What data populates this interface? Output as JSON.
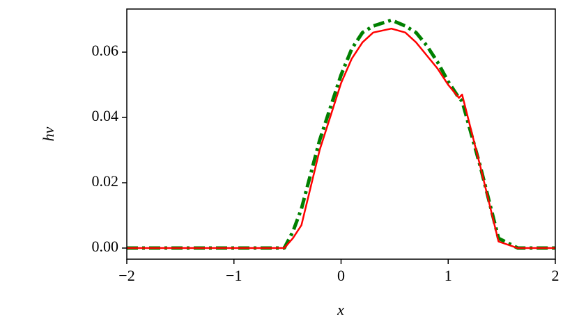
{
  "chart_data": {
    "type": "line",
    "x_label": "x",
    "y_label": "hv",
    "x": [
      -2,
      -0.53,
      -0.45,
      -0.37,
      -0.2,
      0,
      0.1,
      0.2,
      0.3,
      0.47,
      0.6,
      0.7,
      0.8,
      0.9,
      1.0,
      1.1,
      1.13,
      1.3,
      1.47,
      1.65,
      2
    ],
    "series": [
      {
        "color": "#008000",
        "style": "dashdot",
        "values": [
          0,
          0,
          0.005,
          0.012,
          0.033,
          0.053,
          0.061,
          0.066,
          0.068,
          0.0698,
          0.068,
          0.066,
          0.062,
          0.057,
          0.051,
          0.046,
          0.045,
          0.025,
          0.003,
          0,
          0
        ]
      },
      {
        "color": "#ff0000",
        "style": "solid",
        "values": [
          0,
          0,
          0.003,
          0.007,
          0.03,
          0.0505,
          0.058,
          0.063,
          0.066,
          0.0672,
          0.066,
          0.063,
          0.059,
          0.055,
          0.05,
          0.046,
          0.047,
          0.025,
          0.002,
          0,
          0
        ]
      }
    ],
    "xlim": [
      -2,
      2
    ],
    "xticks": [
      {
        "value": -2,
        "label": "−2"
      },
      {
        "value": -1,
        "label": "−1"
      },
      0,
      1,
      2
    ],
    "ylim": [
      -0.0034,
      0.0732
    ],
    "yticks": [
      {
        "value": 0,
        "label": "0.00"
      },
      0.02,
      0.04,
      0.06
    ],
    "grid": false
  }
}
